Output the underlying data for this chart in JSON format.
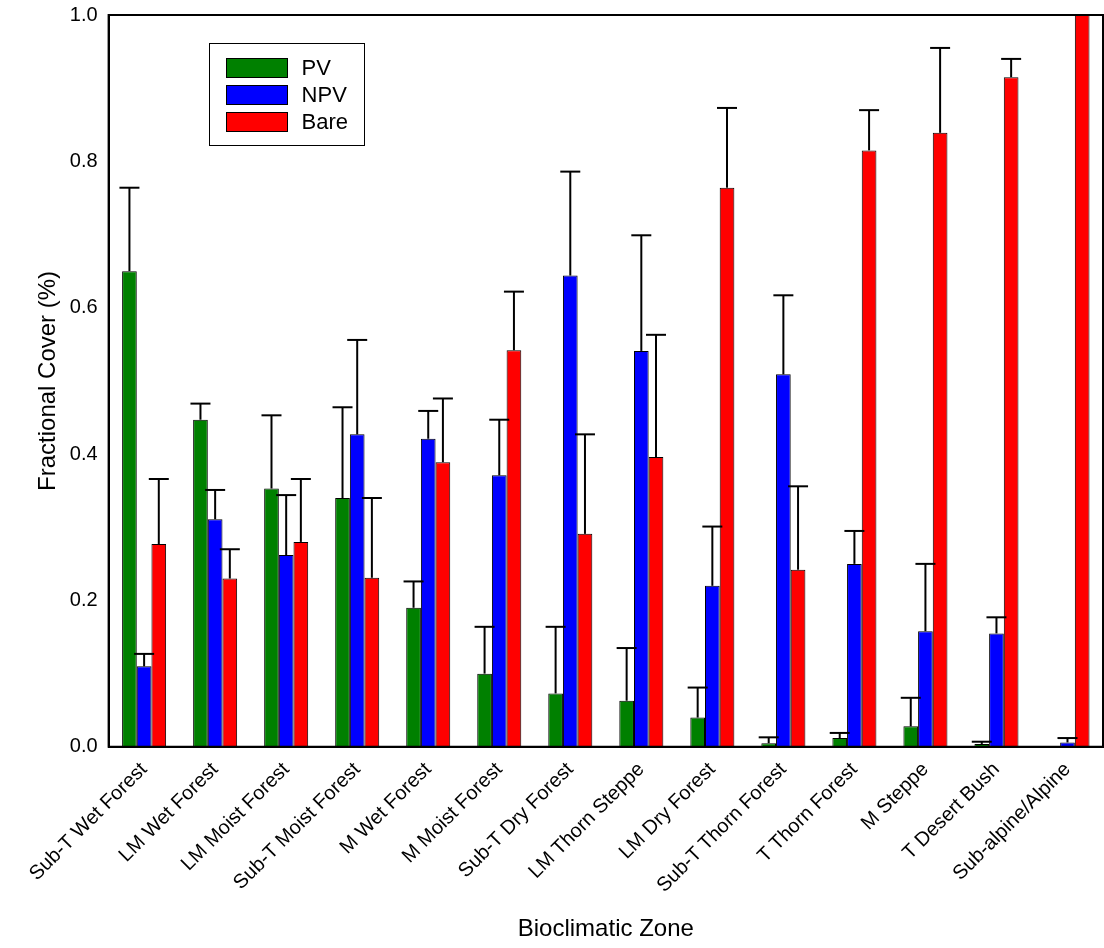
{
  "chart_data": {
    "type": "bar",
    "xlabel": "Bioclimatic Zone",
    "ylabel": "Fractional Cover (%)",
    "categories": [
      "Sub-T Wet Forest",
      "LM Wet Forest",
      "LM Moist Forest",
      "Sub-T Moist Forest",
      "M Wet Forest",
      "M Moist Forest",
      "Sub-T Dry Forest",
      "LM Thorn Steppe",
      "LM Dry Forest",
      "Sub-T Thorn Forest",
      "T Thorn Forest",
      "M Steppe",
      "T Desert Bush",
      "Sub-alpine/Alpine"
    ],
    "series": [
      {
        "name": "PV",
        "color": "#008000",
        "values": [
          0.65,
          0.447,
          0.353,
          0.34,
          0.19,
          0.1,
          0.073,
          0.063,
          0.04,
          0.005,
          0.012,
          0.028,
          0.004,
          0
        ],
        "errors": [
          [
            0.65,
            0.764
          ],
          [
            0.447,
            0.469
          ],
          [
            0.353,
            0.453
          ],
          [
            0.34,
            0.464
          ],
          [
            0.19,
            0.226
          ],
          [
            0.1,
            0.164
          ],
          [
            0.073,
            0.164
          ],
          [
            0.063,
            0.135
          ],
          [
            0.04,
            0.081
          ],
          [
            0.005,
            0.013
          ],
          [
            0.012,
            0.019
          ],
          [
            0.028,
            0.067
          ],
          [
            0.004,
            0.007
          ],
          null
        ]
      },
      {
        "name": "NPV",
        "color": "#0000ff",
        "values": [
          0.11,
          0.311,
          0.262,
          0.427,
          0.421,
          0.371,
          0.644,
          0.541,
          0.22,
          0.509,
          0.25,
          0.158,
          0.155,
          0.006
        ],
        "errors": [
          [
            0.11,
            0.127
          ],
          [
            0.311,
            0.351
          ],
          [
            0.262,
            0.344
          ],
          [
            0.427,
            0.556
          ],
          [
            0.421,
            0.459
          ],
          [
            0.371,
            0.447
          ],
          [
            0.644,
            0.786
          ],
          [
            0.541,
            0.699
          ],
          [
            0.22,
            0.301
          ],
          [
            0.509,
            0.617
          ],
          [
            0.25,
            0.295
          ],
          [
            0.158,
            0.25
          ],
          [
            0.155,
            0.177
          ],
          [
            0.006,
            0.012
          ]
        ]
      },
      {
        "name": "Bare",
        "color": "#ff0000",
        "values": [
          0.277,
          0.23,
          0.28,
          0.231,
          0.389,
          0.542,
          0.291,
          0.396,
          0.764,
          0.242,
          0.815,
          0.839,
          0.915,
          1.0
        ],
        "errors": [
          [
            0.277,
            0.366
          ],
          [
            0.23,
            0.27
          ],
          [
            0.28,
            0.366
          ],
          [
            0.231,
            0.34
          ],
          [
            0.389,
            0.476
          ],
          [
            0.542,
            0.622
          ],
          [
            0.291,
            0.427
          ],
          [
            0.396,
            0.563
          ],
          [
            0.764,
            0.873
          ],
          [
            0.242,
            0.356
          ],
          [
            0.815,
            0.87
          ],
          [
            0.839,
            0.955
          ],
          [
            0.915,
            0.94
          ],
          null
        ]
      }
    ],
    "ylim": [
      0,
      1.0
    ],
    "yticks": [
      {
        "value": 0,
        "label": "0.0"
      },
      {
        "value": 0.2,
        "label": "0.2"
      },
      {
        "value": 0.4,
        "label": "0.4"
      },
      {
        "value": 0.6,
        "label": "0.6"
      },
      {
        "value": 0.8,
        "label": "0.8"
      },
      {
        "value": 1.0,
        "label": "1.0"
      }
    ],
    "grid": false,
    "legend": "top left"
  }
}
